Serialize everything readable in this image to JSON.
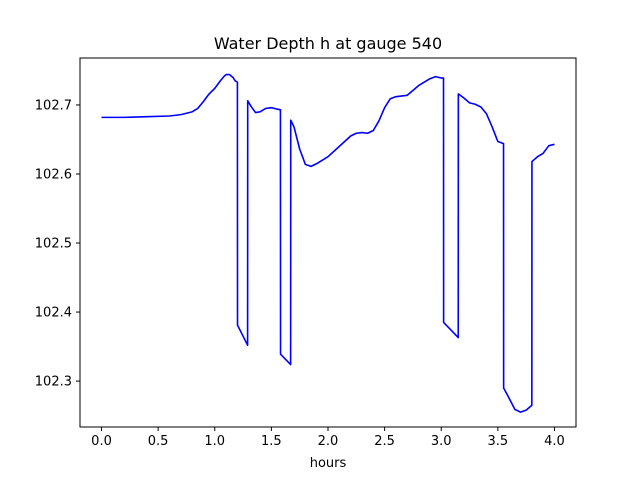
{
  "chart_data": {
    "type": "line",
    "title": "Water Depth h at gauge 540",
    "xlabel": "hours",
    "ylabel": "",
    "xlim": [
      -0.19,
      4.19
    ],
    "ylim": [
      102.2335,
      102.768
    ],
    "xticks": [
      0.0,
      0.5,
      1.0,
      1.5,
      2.0,
      2.5,
      3.0,
      3.5,
      4.0
    ],
    "xtick_labels": [
      "0.0",
      "0.5",
      "1.0",
      "1.5",
      "2.0",
      "2.5",
      "3.0",
      "3.5",
      "4.0"
    ],
    "yticks": [
      102.3,
      102.4,
      102.5,
      102.6,
      102.7
    ],
    "ytick_labels": [
      "102.3",
      "102.4",
      "102.5",
      "102.6",
      "102.7"
    ],
    "grid": false,
    "series": [
      {
        "color": "#0000ff",
        "x": [
          0.0,
          0.2,
          0.4,
          0.6,
          0.7,
          0.8,
          0.85,
          0.9,
          0.95,
          1.0,
          1.05,
          1.08,
          1.1,
          1.13,
          1.16,
          1.18,
          1.2,
          1.201,
          1.29,
          1.291,
          1.32,
          1.36,
          1.4,
          1.45,
          1.5,
          1.55,
          1.58,
          1.581,
          1.67,
          1.671,
          1.7,
          1.75,
          1.8,
          1.85,
          1.9,
          2.0,
          2.1,
          2.2,
          2.25,
          2.3,
          2.35,
          2.4,
          2.45,
          2.5,
          2.55,
          2.6,
          2.7,
          2.8,
          2.9,
          2.95,
          3.0,
          3.02,
          3.021,
          3.15,
          3.151,
          3.2,
          3.25,
          3.3,
          3.35,
          3.4,
          3.45,
          3.5,
          3.55,
          3.551,
          3.6,
          3.65,
          3.7,
          3.75,
          3.8,
          3.801,
          3.85,
          3.9,
          3.95,
          4.0
        ],
        "y": [
          102.682,
          102.682,
          102.683,
          102.684,
          102.686,
          102.69,
          102.695,
          102.705,
          102.716,
          102.724,
          102.735,
          102.741,
          102.744,
          102.744,
          102.74,
          102.735,
          102.733,
          102.381,
          102.352,
          102.706,
          102.698,
          102.689,
          102.69,
          102.695,
          102.696,
          102.694,
          102.693,
          102.339,
          102.324,
          102.678,
          102.668,
          102.636,
          102.614,
          102.611,
          102.615,
          102.625,
          102.64,
          102.655,
          102.659,
          102.66,
          102.659,
          102.663,
          102.677,
          102.696,
          102.709,
          102.712,
          102.714,
          102.728,
          102.738,
          102.741,
          102.739,
          102.739,
          102.385,
          102.363,
          102.716,
          102.71,
          102.703,
          102.701,
          102.697,
          102.687,
          102.668,
          102.647,
          102.644,
          102.29,
          102.275,
          102.259,
          102.255,
          102.258,
          102.265,
          102.618,
          102.625,
          102.63,
          102.641,
          102.643
        ]
      }
    ]
  }
}
